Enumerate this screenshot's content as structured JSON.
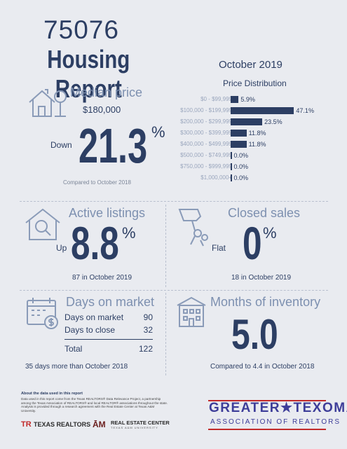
{
  "header": {
    "zip": "75076",
    "title": "Housing Report",
    "month": "October 2019"
  },
  "median_price": {
    "title": "Median price",
    "price": "$180,000",
    "direction": "Down",
    "change": "21.3",
    "percent_sign": "%",
    "comparison": "Compared to October 2018"
  },
  "price_distribution": {
    "title": "Price Distribution",
    "bar_color": "#2c3e63",
    "rows": [
      {
        "label": "$0 - $99,999",
        "value": "5.9%"
      },
      {
        "label": "$100,000 - $199,999",
        "value": "47.1%"
      },
      {
        "label": "$200,000 - $299,999",
        "value": "23.5%"
      },
      {
        "label": "$300,000 - $399,999",
        "value": "11.8%"
      },
      {
        "label": "$400,000 - $499,999",
        "value": "11.8%"
      },
      {
        "label": "$500,000 - $749,999",
        "value": "0.0%"
      },
      {
        "label": "$750,000 - $999,999",
        "value": "0.0%"
      },
      {
        "label": "$1,000,000+",
        "value": "0.0%"
      }
    ]
  },
  "chart_data": {
    "type": "bar",
    "title": "Price Distribution",
    "categories": [
      "$0 - $99,999",
      "$100,000 - $199,999",
      "$200,000 - $299,999",
      "$300,000 - $399,999",
      "$400,000 - $499,999",
      "$500,000 - $749,999",
      "$750,000 - $999,999",
      "$1,000,000+"
    ],
    "values": [
      5.9,
      47.1,
      23.5,
      11.8,
      11.8,
      0.0,
      0.0,
      0.0
    ],
    "orientation": "horizontal",
    "xlim": [
      0,
      50
    ],
    "grid": false
  },
  "active_listings": {
    "title": "Active listings",
    "direction": "Up",
    "change": "8.8",
    "percent_sign": "%",
    "detail": "87 in October 2019"
  },
  "closed_sales": {
    "title": "Closed sales",
    "direction": "Flat",
    "change": "0",
    "percent_sign": "%",
    "detail": "18 in October 2019"
  },
  "days_on_market": {
    "title": "Days on market",
    "rows": [
      {
        "label": "Days on market",
        "value": "90"
      },
      {
        "label": "Days to close",
        "value": "32"
      }
    ],
    "total_label": "Total",
    "total_value": "122",
    "detail": "35 days more than October 2018"
  },
  "months_inventory": {
    "title": "Months of inventory",
    "value": "5.0",
    "detail": "Compared to 4.4 in October 2018"
  },
  "footer": {
    "about_title": "About the data used in this report",
    "about_body": "Data used in this report come from the Texas REALTORS® Data Relevance Project, a partnership among the Texas Association of REALTORS® and local REALTOR® associations throughout the state. Analysis is provided through a research agreement with the Real Estate Center at Texas A&M University.",
    "texas_realtors": "TEXAS REALTORS",
    "real_estate_center": "REAL ESTATE CENTER",
    "real_estate_center_sub": "TEXAS A&M UNIVERSITY",
    "org_line1": "GREATER★TEXOMA",
    "org_line2": "ASSOCIATION OF REALTORS"
  },
  "icons": [
    "house-tree-icon",
    "house-search-icon",
    "keys-hand-icon",
    "calendar-money-icon",
    "building-icon"
  ],
  "colors": {
    "navy": "#2c3e63",
    "muted": "#7d90b0",
    "texoma": "#3d3d99",
    "red": "#c22a2a"
  }
}
